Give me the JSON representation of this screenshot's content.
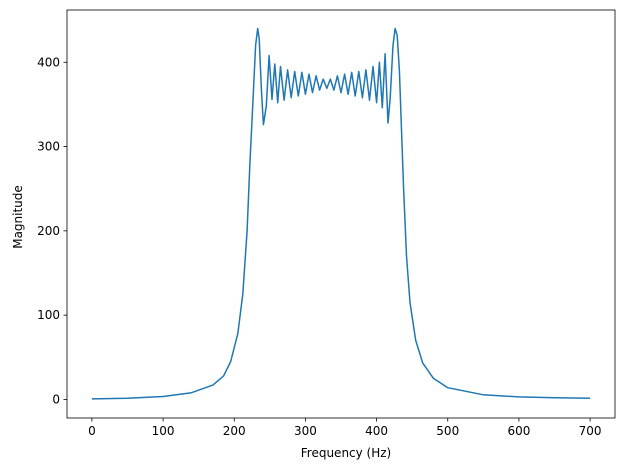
{
  "chart_data": {
    "type": "line",
    "title": "",
    "xlabel": "Frequency (Hz)",
    "ylabel": "Magnitude",
    "xlim": [
      -35,
      735
    ],
    "ylim": [
      -22,
      462
    ],
    "xticks": [
      0,
      100,
      200,
      300,
      400,
      500,
      600,
      700
    ],
    "yticks": [
      0,
      100,
      200,
      300,
      400
    ],
    "grid": false,
    "legend": "none",
    "series": [
      {
        "color": "#1f77b4",
        "points": [
          [
            0,
            0.6
          ],
          [
            50,
            1.5
          ],
          [
            100,
            3.5
          ],
          [
            140,
            8
          ],
          [
            170,
            17
          ],
          [
            185,
            28
          ],
          [
            195,
            45
          ],
          [
            205,
            78
          ],
          [
            212,
            125
          ],
          [
            218,
            200
          ],
          [
            222,
            280
          ],
          [
            226,
            350
          ],
          [
            230,
            420
          ],
          [
            233,
            440
          ],
          [
            235,
            428
          ],
          [
            238,
            370
          ],
          [
            241,
            326
          ],
          [
            245,
            348
          ],
          [
            249,
            408
          ],
          [
            253,
            356
          ],
          [
            257,
            398
          ],
          [
            261,
            352
          ],
          [
            265,
            395
          ],
          [
            270,
            355
          ],
          [
            275,
            391
          ],
          [
            280,
            358
          ],
          [
            285,
            389
          ],
          [
            290,
            360
          ],
          [
            295,
            388
          ],
          [
            300,
            362
          ],
          [
            305,
            386
          ],
          [
            310,
            364
          ],
          [
            315,
            384
          ],
          [
            320,
            367
          ],
          [
            325,
            380
          ],
          [
            330,
            369
          ],
          [
            335,
            380
          ],
          [
            340,
            367
          ],
          [
            345,
            384
          ],
          [
            350,
            364
          ],
          [
            355,
            386
          ],
          [
            360,
            362
          ],
          [
            365,
            388
          ],
          [
            370,
            360
          ],
          [
            375,
            389
          ],
          [
            380,
            358
          ],
          [
            385,
            391
          ],
          [
            390,
            355
          ],
          [
            395,
            395
          ],
          [
            400,
            352
          ],
          [
            404,
            400
          ],
          [
            408,
            346
          ],
          [
            412,
            410
          ],
          [
            416,
            328
          ],
          [
            419,
            356
          ],
          [
            423,
            420
          ],
          [
            426,
            440
          ],
          [
            429,
            432
          ],
          [
            432,
            390
          ],
          [
            435,
            320
          ],
          [
            438,
            250
          ],
          [
            442,
            170
          ],
          [
            447,
            115
          ],
          [
            455,
            70
          ],
          [
            465,
            43
          ],
          [
            480,
            25
          ],
          [
            500,
            14
          ],
          [
            550,
            5.5
          ],
          [
            600,
            3
          ],
          [
            650,
            2
          ],
          [
            700,
            1.4
          ]
        ]
      }
    ]
  }
}
